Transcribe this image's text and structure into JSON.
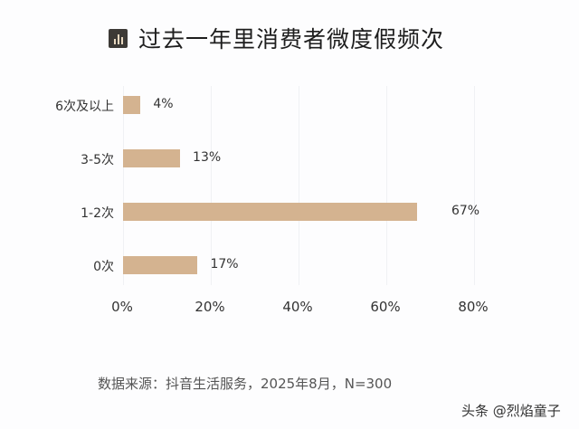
{
  "header": {
    "title": "过去一年里消费者微度假频次",
    "icon": "bar-chart-icon"
  },
  "chart_data": {
    "type": "bar",
    "orientation": "horizontal",
    "title": "过去一年里消费者微度假频次",
    "categories": [
      "6次及以上",
      "3-5次",
      "1-2次",
      "0次"
    ],
    "values": [
      4,
      13,
      67,
      17
    ],
    "value_labels": [
      "4%",
      "13%",
      "67%",
      "17%"
    ],
    "xlabel": "",
    "ylabel": "",
    "xlim": [
      0,
      80
    ],
    "x_ticks": [
      "0%",
      "20%",
      "40%",
      "60%",
      "80%"
    ],
    "grid": true,
    "bar_color": "#d4b390"
  },
  "footer": {
    "source": "数据来源：抖音生活服务，2025年8月，N=300",
    "watermark": "头条 @烈焰童子"
  }
}
